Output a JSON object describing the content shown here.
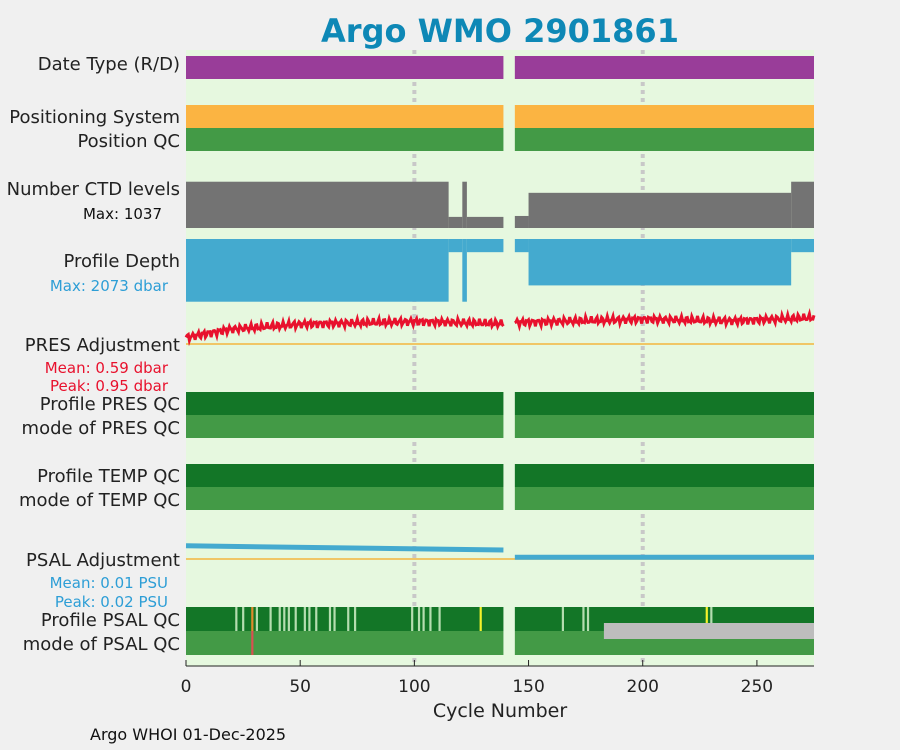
{
  "title": "Argo WMO 2901861",
  "footer": "Argo WHOI 01-Dec-2025",
  "colors": {
    "background": "#e6f8df",
    "date_type": "#993d99",
    "positioning": "#fbb442",
    "qc_good_dark": "#137627",
    "qc_good": "#439a46",
    "ctd_levels": "#737373",
    "profile_depth": "#44aacf",
    "pres_adjustment": "#e8112d",
    "psal_adjustment": "#44aacf",
    "zero_line": "#f3b53f",
    "flag_light": "#b5ddb0",
    "flag_yellow": "#f5f22a",
    "flag_orange": "#e08a2c",
    "flag_red": "#d85050",
    "flag_grey": "#bdbdbd"
  },
  "rows": {
    "date_type": "Date Type (R/D)",
    "positioning_system": "Positioning System",
    "position_qc": "Position QC",
    "ctd_levels": "Number CTD levels",
    "ctd_max": "Max: 1037",
    "profile_depth": "Profile Depth",
    "depth_max": "Max: 2073 dbar",
    "pres_adjustment": "PRES Adjustment",
    "pres_mean": "Mean: 0.59 dbar",
    "pres_peak": "Peak: 0.95 dbar",
    "profile_pres_qc": "Profile PRES QC",
    "mode_pres_qc": "mode of PRES QC",
    "profile_temp_qc": "Profile TEMP QC",
    "mode_temp_qc": "mode of TEMP QC",
    "psal_adjustment": "PSAL Adjustment",
    "psal_mean": "Mean: 0.01 PSU",
    "psal_peak": "Peak: 0.02 PSU",
    "profile_psal_qc": "Profile PSAL QC",
    "mode_psal_qc": "mode of PSAL QC"
  },
  "chart_data": {
    "type": "timeline",
    "xlabel": "Cycle Number",
    "xlim": [
      0,
      275
    ],
    "xticks": [
      0,
      50,
      100,
      150,
      200,
      250
    ],
    "vertical_grid_at": [
      100,
      200
    ],
    "cycle_ranges": [
      [
        0,
        139
      ],
      [
        144,
        275
      ]
    ],
    "ctd_levels_max": 1037,
    "ctd_levels_pattern": [
      {
        "from": 0,
        "to": 115,
        "value": 1000
      },
      {
        "from": 115,
        "to": 121,
        "value": 240
      },
      {
        "from": 121,
        "to": 123,
        "value": 1000
      },
      {
        "from": 123,
        "to": 139,
        "value": 240
      },
      {
        "from": 144,
        "to": 150,
        "value": 260
      },
      {
        "from": 150,
        "to": 265,
        "value": 760
      },
      {
        "from": 265,
        "to": 275,
        "value": 1000
      }
    ],
    "profile_depth_max_dbar": 2073,
    "profile_depth_pattern": [
      {
        "from": 0,
        "to": 115,
        "value": 2000
      },
      {
        "from": 115,
        "to": 121,
        "value": 420
      },
      {
        "from": 121,
        "to": 123,
        "value": 2000
      },
      {
        "from": 123,
        "to": 139,
        "value": 420
      },
      {
        "from": 144,
        "to": 150,
        "value": 420
      },
      {
        "from": 150,
        "to": 265,
        "value": 1480
      },
      {
        "from": 265,
        "to": 275,
        "value": 420
      }
    ],
    "pres_adjustment": {
      "mean": 0.59,
      "peak": 0.95,
      "units": "dbar",
      "trend": [
        [
          0,
          0.2
        ],
        [
          20,
          0.45
        ],
        [
          50,
          0.6
        ],
        [
          100,
          0.68
        ],
        [
          139,
          0.62
        ],
        [
          144,
          0.65
        ],
        [
          200,
          0.75
        ],
        [
          240,
          0.7
        ],
        [
          275,
          0.8
        ]
      ]
    },
    "psal_adjustment": {
      "mean": 0.01,
      "peak": 0.02,
      "units": "PSU",
      "trend": [
        [
          0,
          0.022
        ],
        [
          139,
          0.015
        ],
        [
          144,
          0.003
        ],
        [
          275,
          0.003
        ]
      ]
    },
    "psal_qc_flags": [
      {
        "cycle": 22,
        "flag": "light"
      },
      {
        "cycle": 25,
        "flag": "light"
      },
      {
        "cycle": 29,
        "flag": "orange"
      },
      {
        "cycle": 31,
        "flag": "light"
      },
      {
        "cycle": 37,
        "flag": "light"
      },
      {
        "cycle": 41,
        "flag": "light"
      },
      {
        "cycle": 43,
        "flag": "light"
      },
      {
        "cycle": 45,
        "flag": "light"
      },
      {
        "cycle": 48,
        "flag": "light"
      },
      {
        "cycle": 52,
        "flag": "light"
      },
      {
        "cycle": 54,
        "flag": "light"
      },
      {
        "cycle": 57,
        "flag": "light"
      },
      {
        "cycle": 63,
        "flag": "light"
      },
      {
        "cycle": 65,
        "flag": "light"
      },
      {
        "cycle": 71,
        "flag": "light"
      },
      {
        "cycle": 74,
        "flag": "light"
      },
      {
        "cycle": 99,
        "flag": "light"
      },
      {
        "cycle": 102,
        "flag": "light"
      },
      {
        "cycle": 104,
        "flag": "light"
      },
      {
        "cycle": 107,
        "flag": "light"
      },
      {
        "cycle": 111,
        "flag": "light"
      },
      {
        "cycle": 129,
        "flag": "yellow"
      },
      {
        "cycle": 165,
        "flag": "light"
      },
      {
        "cycle": 174,
        "flag": "light"
      },
      {
        "cycle": 176,
        "flag": "light"
      },
      {
        "cycle": 228,
        "flag": "yellow"
      },
      {
        "cycle": 230,
        "flag": "light"
      }
    ],
    "psal_mode_qc_flags": [
      {
        "cycle": 29,
        "flag": "red"
      },
      {
        "from": 183,
        "to": 275,
        "flag": "grey"
      }
    ]
  }
}
